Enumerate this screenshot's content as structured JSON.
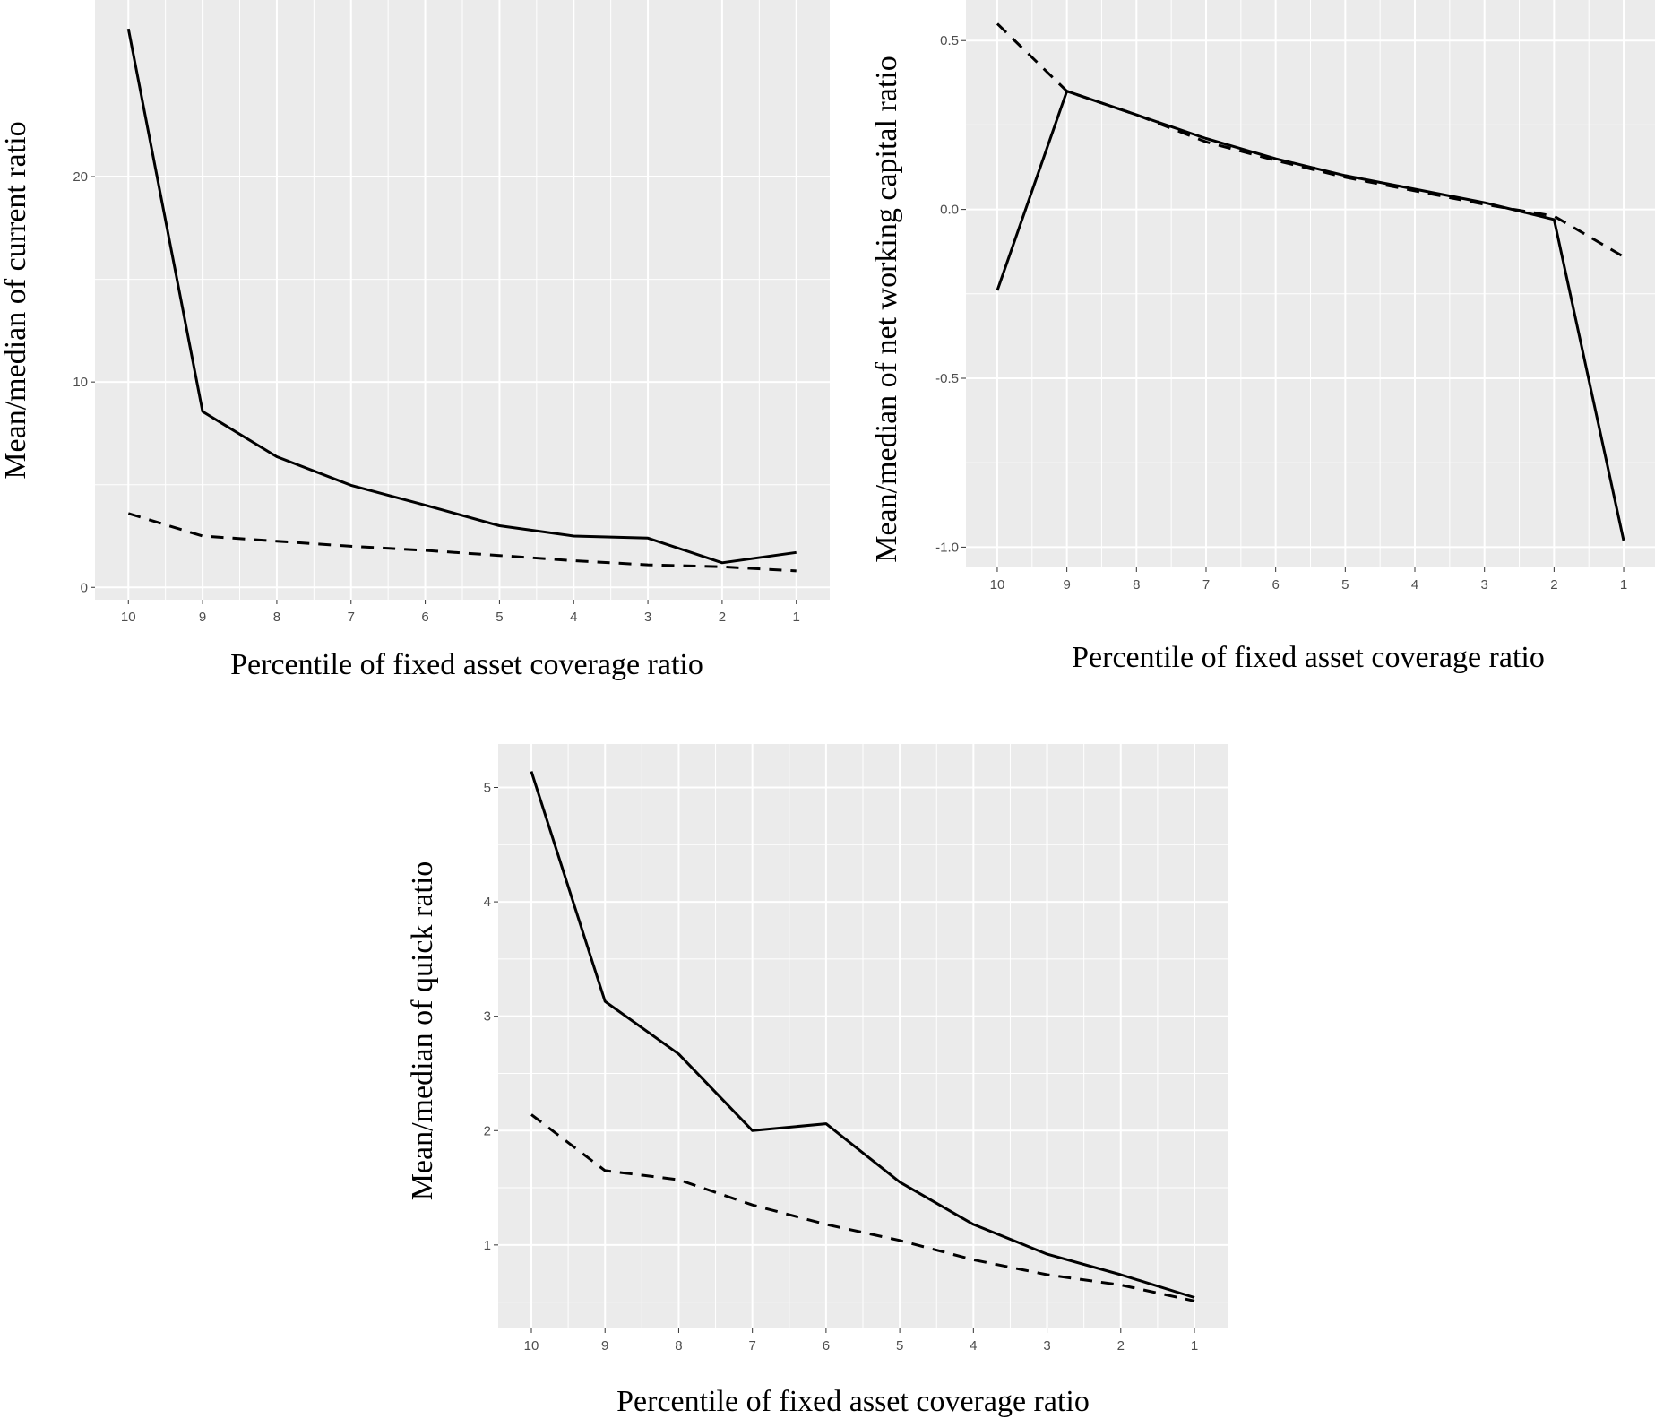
{
  "chart_data": [
    {
      "type": "line",
      "xlabel": "Percentile of fixed asset coverage ratio",
      "ylabel": "Mean/median of current ratio",
      "x": [
        10,
        9,
        8,
        7,
        6,
        5,
        4,
        3,
        2,
        1
      ],
      "x_reversed": true,
      "ylim": [
        -0.6,
        28.6
      ],
      "yticks": [
        0,
        10,
        20
      ],
      "grid": true,
      "series": [
        {
          "style": "solid",
          "values": [
            27.2,
            8.56,
            6.36,
            4.97,
            4.0,
            3.0,
            2.5,
            2.4,
            1.2,
            1.7
          ]
        },
        {
          "style": "dashed",
          "values": [
            3.6,
            2.5,
            2.25,
            2.0,
            1.8,
            1.55,
            1.3,
            1.1,
            1.0,
            0.8
          ]
        }
      ]
    },
    {
      "type": "line",
      "xlabel": "Percentile of fixed asset coverage ratio",
      "ylabel": "Mean/median of net working capital ratio",
      "x": [
        10,
        9,
        8,
        7,
        6,
        5,
        4,
        3,
        2,
        1
      ],
      "x_reversed": true,
      "ylim": [
        -1.06,
        0.62
      ],
      "yticks": [
        -1.0,
        -0.5,
        0.0,
        0.5
      ],
      "grid": true,
      "series": [
        {
          "style": "solid",
          "values": [
            -0.24,
            0.35,
            0.28,
            0.21,
            0.15,
            0.1,
            0.06,
            0.02,
            -0.03,
            -0.98
          ]
        },
        {
          "style": "dashed",
          "values": [
            0.55,
            0.35,
            0.28,
            0.2,
            0.145,
            0.095,
            0.055,
            0.015,
            -0.02,
            -0.14
          ]
        }
      ]
    },
    {
      "type": "line",
      "xlabel": "Percentile of fixed asset coverage ratio",
      "ylabel": "Mean/median of quick ratio",
      "x": [
        10,
        9,
        8,
        7,
        6,
        5,
        4,
        3,
        2,
        1
      ],
      "x_reversed": true,
      "ylim": [
        0.27,
        5.38
      ],
      "yticks": [
        1,
        2,
        3,
        4,
        5
      ],
      "grid": true,
      "series": [
        {
          "style": "solid",
          "values": [
            5.14,
            3.13,
            2.67,
            2.0,
            2.06,
            1.55,
            1.18,
            0.92,
            0.74,
            0.54
          ]
        },
        {
          "style": "dashed",
          "values": [
            2.14,
            1.65,
            1.57,
            1.35,
            1.18,
            1.04,
            0.87,
            0.74,
            0.65,
            0.51
          ]
        }
      ]
    }
  ],
  "colors": {
    "panel": "#ebebeb",
    "grid": "#ffffff",
    "line": "#000000",
    "tick_text": "#4d4d4d"
  }
}
